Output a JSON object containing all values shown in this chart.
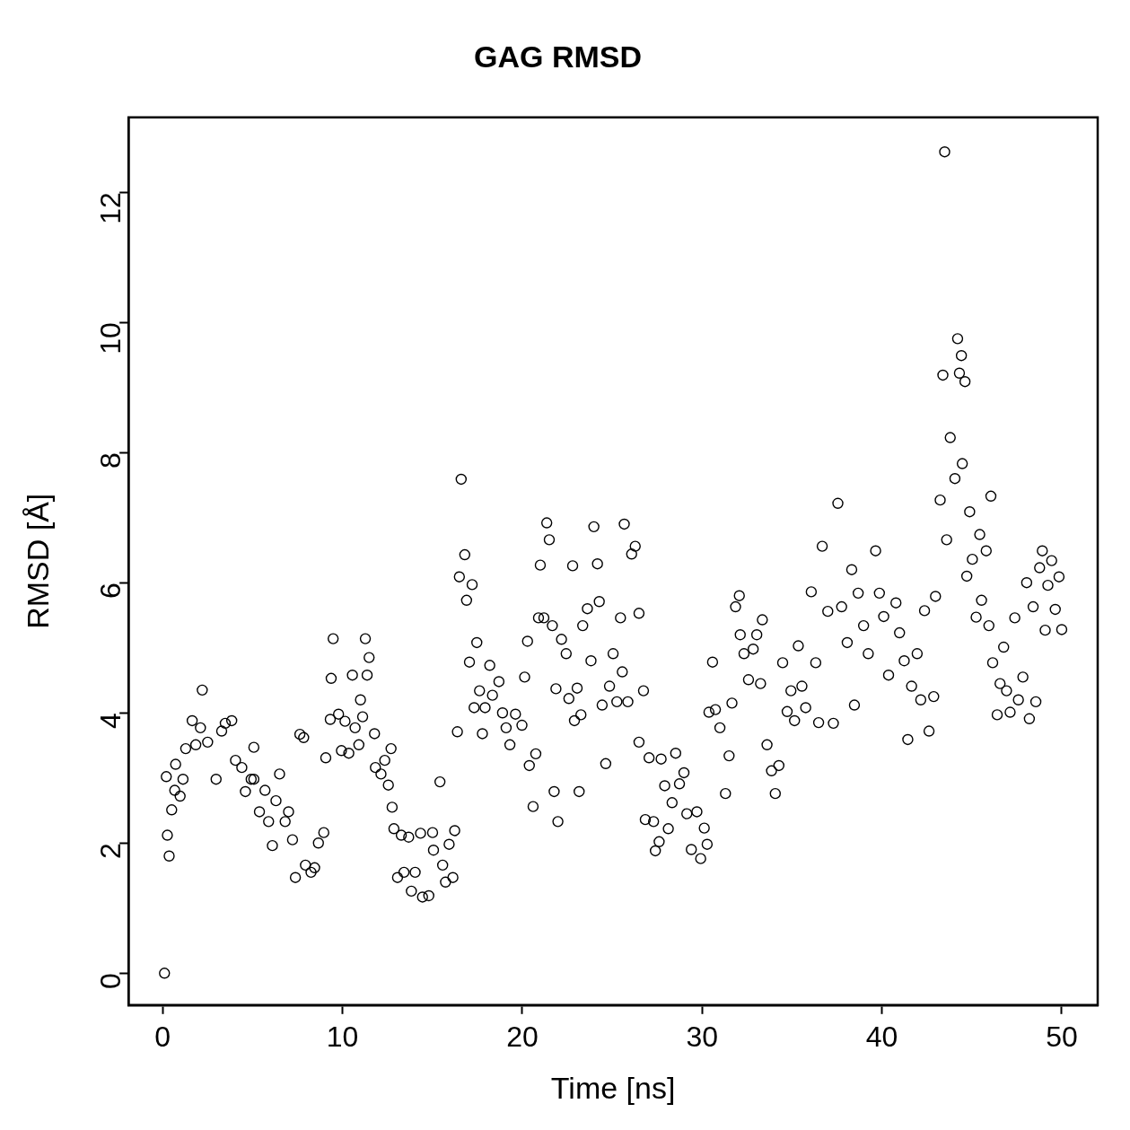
{
  "chart_data": {
    "type": "scatter",
    "title": "GAG RMSD",
    "xlabel": "Time [ns]",
    "ylabel": "RMSD [Å]",
    "xlim": [
      -1.9,
      52.0
    ],
    "ylim": [
      -0.49,
      13.15
    ],
    "xticks": [
      0,
      10,
      20,
      30,
      40,
      50
    ],
    "yticks": [
      0,
      2,
      4,
      6,
      8,
      10,
      12
    ],
    "grid": false,
    "legend": false,
    "marker": "circle",
    "series": [
      {
        "color": "#000000",
        "x": [
          0.1,
          0.26,
          0.36,
          0.2,
          0.5,
          0.67,
          0.72,
          0.97,
          1.13,
          1.28,
          1.64,
          1.84,
          2.2,
          2.1,
          2.5,
          2.97,
          3.28,
          3.48,
          3.84,
          4.05,
          4.4,
          4.6,
          4.92,
          5.07,
          5.07,
          5.38,
          5.69,
          5.89,
          6.1,
          6.3,
          6.5,
          6.81,
          7.0,
          7.22,
          7.38,
          7.63,
          7.84,
          7.94,
          8.25,
          8.45,
          8.66,
          8.96,
          9.07,
          9.32,
          9.48,
          9.37,
          9.78,
          9.94,
          10.14,
          10.35,
          10.55,
          10.7,
          10.91,
          11.0,
          11.12,
          11.27,
          11.48,
          11.37,
          11.78,
          11.83,
          12.14,
          12.35,
          12.55,
          12.7,
          12.76,
          12.86,
          13.06,
          13.27,
          13.42,
          13.68,
          13.83,
          14.04,
          14.34,
          14.45,
          14.8,
          15.01,
          15.06,
          15.42,
          15.57,
          15.73,
          15.93,
          16.14,
          16.24,
          16.39,
          16.5,
          16.6,
          16.8,
          16.9,
          17.06,
          17.21,
          17.32,
          17.47,
          17.62,
          17.78,
          17.93,
          18.19,
          18.34,
          18.7,
          18.9,
          19.1,
          19.31,
          19.62,
          19.98,
          20.13,
          20.29,
          20.39,
          20.6,
          20.75,
          20.9,
          21.0,
          21.2,
          21.36,
          21.5,
          21.67,
          21.77,
          21.87,
          21.98,
          22.18,
          22.44,
          22.59,
          22.8,
          22.9,
          23.05,
          23.16,
          23.26,
          23.36,
          23.62,
          23.82,
          23.98,
          24.18,
          24.28,
          24.44,
          24.64,
          24.85,
          25.05,
          25.26,
          25.46,
          25.56,
          25.67,
          25.87,
          26.08,
          26.28,
          26.49,
          26.49,
          26.74,
          26.84,
          27.05,
          27.3,
          27.4,
          27.61,
          27.72,
          27.92,
          28.12,
          28.33,
          28.53,
          28.74,
          28.99,
          29.15,
          29.4,
          29.71,
          29.92,
          30.12,
          30.28,
          30.38,
          30.58,
          30.74,
          30.99,
          31.3,
          31.5,
          31.66,
          31.86,
          32.07,
          32.12,
          32.33,
          32.58,
          32.84,
          33.04,
          33.25,
          33.35,
          33.61,
          33.86,
          34.07,
          34.27,
          34.48,
          34.73,
          34.94,
          35.14,
          35.35,
          35.55,
          35.76,
          36.07,
          36.32,
          36.48,
          36.68,
          36.99,
          37.55,
          37.3,
          37.76,
          38.07,
          38.32,
          38.47,
          38.68,
          38.98,
          39.24,
          39.65,
          39.86,
          40.1,
          40.37,
          40.78,
          40.98,
          41.24,
          41.44,
          41.65,
          41.96,
          42.16,
          42.37,
          42.62,
          42.88,
          42.98,
          43.24,
          43.39,
          43.49,
          43.6,
          43.8,
          44.06,
          44.21,
          44.31,
          44.42,
          44.47,
          44.62,
          44.72,
          44.88,
          45.03,
          45.24,
          45.44,
          45.54,
          45.8,
          45.95,
          46.06,
          46.16,
          46.41,
          46.57,
          46.77,
          46.93,
          47.13,
          47.39,
          47.59,
          47.84,
          48.05,
          48.2,
          48.41,
          48.56,
          48.77,
          48.92,
          49.08,
          49.23,
          49.44,
          49.64,
          49.85,
          50.0
        ],
        "values": [
          0.0,
          2.12,
          1.8,
          3.02,
          2.51,
          2.81,
          3.21,
          2.72,
          2.98,
          3.45,
          3.88,
          3.51,
          4.35,
          3.77,
          3.55,
          2.98,
          3.72,
          3.84,
          3.88,
          3.27,
          3.16,
          2.79,
          2.98,
          3.47,
          2.98,
          2.48,
          2.81,
          2.33,
          1.96,
          2.65,
          3.06,
          2.33,
          2.48,
          2.05,
          1.47,
          3.67,
          3.62,
          1.66,
          1.55,
          1.62,
          2.0,
          2.16,
          3.31,
          3.9,
          5.14,
          4.53,
          3.98,
          3.42,
          3.87,
          3.38,
          4.58,
          3.77,
          3.51,
          4.2,
          3.94,
          5.14,
          4.85,
          4.58,
          3.68,
          3.16,
          3.06,
          3.27,
          2.89,
          3.45,
          2.55,
          2.22,
          1.47,
          2.12,
          1.55,
          2.09,
          1.26,
          1.55,
          2.15,
          1.17,
          1.19,
          2.16,
          1.89,
          2.94,
          1.66,
          1.4,
          1.98,
          1.47,
          2.19,
          3.71,
          6.09,
          7.59,
          6.43,
          5.73,
          4.78,
          5.97,
          4.08,
          5.08,
          4.34,
          3.68,
          4.08,
          4.73,
          4.27,
          4.48,
          4.0,
          3.77,
          3.51,
          3.98,
          3.81,
          4.55,
          5.1,
          3.19,
          2.56,
          3.37,
          5.46,
          6.27,
          5.46,
          6.92,
          6.66,
          5.34,
          2.79,
          4.37,
          2.33,
          5.13,
          4.91,
          4.22,
          6.26,
          3.88,
          4.38,
          2.79,
          3.97,
          5.34,
          5.6,
          4.8,
          6.86,
          6.29,
          5.71,
          4.12,
          3.22,
          4.41,
          4.91,
          4.17,
          5.46,
          4.63,
          6.9,
          4.17,
          6.44,
          6.56,
          5.53,
          3.55,
          4.34,
          2.36,
          3.31,
          2.33,
          1.88,
          2.02,
          3.29,
          2.88,
          2.22,
          2.62,
          3.38,
          2.91,
          3.08,
          2.45,
          1.9,
          2.48,
          1.76,
          2.23,
          1.98,
          4.01,
          4.78,
          4.05,
          3.77,
          2.76,
          3.34,
          4.15,
          5.63,
          5.8,
          5.2,
          4.91,
          4.51,
          4.98,
          5.2,
          4.45,
          5.43,
          3.51,
          3.11,
          2.76,
          3.19,
          4.77,
          4.02,
          4.34,
          3.88,
          5.03,
          4.41,
          4.08,
          5.86,
          4.77,
          3.85,
          6.56,
          5.56,
          7.22,
          3.84,
          5.63,
          5.08,
          6.2,
          4.12,
          5.84,
          5.34,
          4.91,
          6.49,
          5.84,
          5.48,
          4.58,
          5.69,
          5.23,
          4.8,
          3.59,
          4.41,
          4.91,
          4.2,
          5.57,
          3.72,
          4.25,
          5.79,
          7.27,
          9.19,
          12.62,
          6.66,
          8.23,
          7.6,
          9.75,
          9.22,
          9.49,
          7.83,
          9.09,
          6.1,
          7.09,
          6.36,
          5.47,
          6.74,
          5.73,
          6.49,
          5.34,
          7.33,
          4.77,
          3.97,
          4.45,
          5.01,
          4.34,
          4.01,
          5.46,
          4.2,
          4.55,
          6.0,
          3.91,
          5.63,
          4.17,
          6.23,
          6.49,
          5.27,
          5.96,
          6.34,
          5.59,
          6.09,
          5.28
        ]
      }
    ]
  }
}
